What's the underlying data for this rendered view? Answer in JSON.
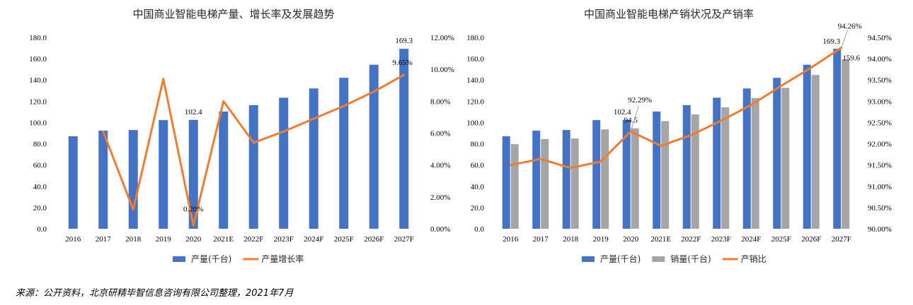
{
  "colors": {
    "bar_blue": "#4472C4",
    "bar_gray": "#A5A5A5",
    "line_orange": "#ED7D31"
  },
  "chart_data": [
    {
      "type": "bar+line",
      "title": "中国商业智能电梯产量、增长率及发展趋势",
      "categories": [
        "2016",
        "2017",
        "2018",
        "2019",
        "2020",
        "2021E",
        "2022F",
        "2023F",
        "2024F",
        "2025F",
        "2026F",
        "2027F"
      ],
      "y_left": {
        "min": 0,
        "max": 180,
        "step": 20,
        "tick_labels": [
          "0.0",
          "20.0",
          "40.0",
          "60.0",
          "80.0",
          "100.0",
          "120.0",
          "140.0",
          "160.0",
          "180.0"
        ]
      },
      "y_right": {
        "min": 0,
        "max": 12,
        "step": 2,
        "tick_labels": [
          "0.00%",
          "2.00%",
          "4.00%",
          "6.00%",
          "8.00%",
          "10.00%",
          "12.00%"
        ]
      },
      "series": [
        {
          "name": "产量(千台)",
          "type": "bar",
          "axis": "left",
          "values": [
            87,
            92.3,
            92.9,
            102.2,
            102.4,
            110.3,
            116.3,
            123.3,
            132,
            142,
            154.3,
            169.3
          ]
        },
        {
          "name": "产量增长率",
          "type": "line",
          "axis": "right",
          "values": [
            null,
            6.1,
            1.2,
            9.4,
            0.2,
            8.0,
            5.4,
            6.1,
            6.9,
            7.7,
            8.6,
            9.65
          ]
        }
      ],
      "data_labels": [
        {
          "series": 0,
          "index": 4,
          "text": "102.4"
        },
        {
          "series": 0,
          "index": 11,
          "text": "169.3"
        },
        {
          "series": 1,
          "index": 4,
          "text": "0.20%"
        },
        {
          "series": 1,
          "index": 11,
          "text": "9.65%"
        }
      ],
      "legend": "bottom"
    },
    {
      "type": "bar+line",
      "title": "中国商业智能电梯产销状况及产销率",
      "categories": [
        "2016",
        "2017",
        "2018",
        "2019",
        "2020",
        "2021E",
        "2022F",
        "2023F",
        "2024F",
        "2025F",
        "2026F",
        "2027F"
      ],
      "y_left": {
        "min": 0,
        "max": 180,
        "step": 20,
        "tick_labels": [
          "0.0",
          "20.0",
          "40.0",
          "60.0",
          "80.0",
          "100.0",
          "120.0",
          "140.0",
          "160.0",
          "180.0"
        ]
      },
      "y_right": {
        "min": 90,
        "max": 94.5,
        "step": 0.5,
        "tick_labels": [
          "90.00%",
          "90.50%",
          "91.00%",
          "91.50%",
          "92.00%",
          "92.50%",
          "93.00%",
          "93.50%",
          "94.00%",
          "94.50%"
        ]
      },
      "series": [
        {
          "name": "产量(千台)",
          "type": "bar",
          "axis": "left",
          "values": [
            87,
            92.3,
            92.9,
            102.2,
            102.4,
            110.3,
            116.3,
            123.3,
            132,
            142,
            154.3,
            169.3
          ]
        },
        {
          "name": "销量(千台)",
          "type": "bar",
          "axis": "left",
          "values": [
            79.6,
            84.4,
            84.9,
            93.5,
            94.5,
            101.3,
            107.6,
            114.2,
            123,
            132.6,
            144.7,
            159.6
          ]
        },
        {
          "name": "产销比",
          "type": "line",
          "axis": "right",
          "values": [
            91.5,
            91.64,
            91.43,
            91.58,
            92.29,
            91.95,
            92.2,
            92.54,
            92.91,
            93.36,
            93.79,
            94.26
          ]
        }
      ],
      "data_labels": [
        {
          "series": 0,
          "index": 4,
          "text": "102.4"
        },
        {
          "series": 1,
          "index": 4,
          "text": "94.5"
        },
        {
          "series": 2,
          "index": 4,
          "text": "92.29%"
        },
        {
          "series": 0,
          "index": 11,
          "text": "169.3"
        },
        {
          "series": 1,
          "index": 11,
          "text": "159.6"
        },
        {
          "series": 2,
          "index": 11,
          "text": "94.26%"
        }
      ],
      "legend": "bottom"
    }
  ],
  "source_text": "来源：公开资料，北京研精毕智信息咨询有限公司整理，2021年7月"
}
